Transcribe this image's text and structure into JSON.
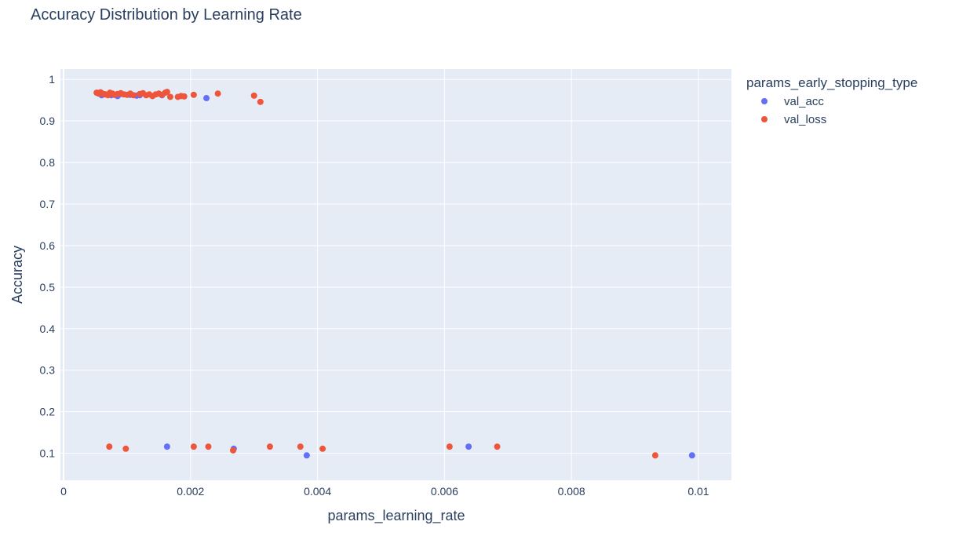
{
  "chart_data": {
    "type": "scatter",
    "title": "Accuracy Distribution by Learning Rate",
    "xlabel": "params_learning_rate",
    "ylabel": "Accuracy",
    "xlim": [
      -5e-05,
      0.01052
    ],
    "ylim": [
      0.035,
      1.025
    ],
    "x_ticks": [
      0,
      0.002,
      0.004,
      0.006,
      0.008,
      0.01
    ],
    "x_tick_labels": [
      "0",
      "0.002",
      "0.004",
      "0.006",
      "0.008",
      "0.01"
    ],
    "y_ticks": [
      0.1,
      0.2,
      0.3,
      0.4,
      0.5,
      0.6,
      0.7,
      0.8,
      0.9,
      1
    ],
    "y_tick_labels": [
      "0.1",
      "0.2",
      "0.3",
      "0.4",
      "0.5",
      "0.6",
      "0.7",
      "0.8",
      "0.9",
      "1"
    ],
    "legend_title": "params_early_stopping_type",
    "legend_position": "top-right",
    "grid": true,
    "series": [
      {
        "name": "val_acc",
        "color": "#636efa",
        "x": [
          0.0006,
          0.00065,
          0.00075,
          0.00085,
          0.0009,
          0.00105,
          0.00115,
          0.0012,
          0.00155,
          0.00225,
          0.00163,
          0.00268,
          0.00383,
          0.00638,
          0.0099
        ],
        "y": [
          0.962,
          0.964,
          0.962,
          0.96,
          0.965,
          0.963,
          0.961,
          0.962,
          0.962,
          0.955,
          0.116,
          0.111,
          0.095,
          0.116,
          0.095
        ]
      },
      {
        "name": "val_loss",
        "color": "#ef553b",
        "x": [
          0.00052,
          0.00055,
          0.00058,
          0.0006,
          0.00063,
          0.00066,
          0.0007,
          0.00073,
          0.00077,
          0.0008,
          0.00085,
          0.0009,
          0.00095,
          0.001,
          0.00105,
          0.0011,
          0.0012,
          0.00125,
          0.0013,
          0.00135,
          0.0014,
          0.00145,
          0.0015,
          0.00155,
          0.0016,
          0.00163,
          0.00168,
          0.0018,
          0.00185,
          0.0019,
          0.00205,
          0.00243,
          0.003,
          0.0031,
          0.00072,
          0.00098,
          0.00205,
          0.00228,
          0.00267,
          0.00325,
          0.00373,
          0.00408,
          0.00608,
          0.00683,
          0.00932
        ],
        "y": [
          0.968,
          0.966,
          0.969,
          0.967,
          0.965,
          0.964,
          0.962,
          0.968,
          0.966,
          0.963,
          0.965,
          0.967,
          0.964,
          0.963,
          0.966,
          0.962,
          0.965,
          0.967,
          0.962,
          0.964,
          0.96,
          0.964,
          0.966,
          0.963,
          0.968,
          0.97,
          0.958,
          0.958,
          0.96,
          0.959,
          0.963,
          0.966,
          0.961,
          0.946,
          0.116,
          0.111,
          0.116,
          0.116,
          0.107,
          0.116,
          0.116,
          0.111,
          0.116,
          0.116,
          0.095
        ]
      }
    ]
  }
}
